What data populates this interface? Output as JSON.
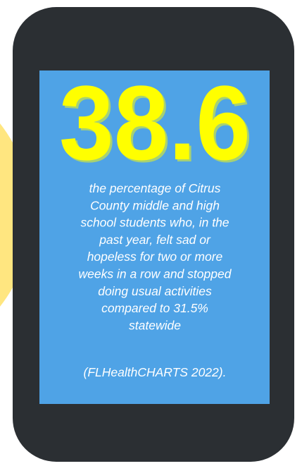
{
  "stat": {
    "value": "38.6",
    "description": [
      "the percentage of Citrus",
      "County middle and high",
      "school students who, in the",
      "past year, felt sad or",
      "hopeless for two or more",
      "weeks in a row and stopped",
      "doing usual activities",
      "compared to 31.5%",
      "statewide"
    ],
    "source": "(FLHealthCHARTS 2022)."
  }
}
